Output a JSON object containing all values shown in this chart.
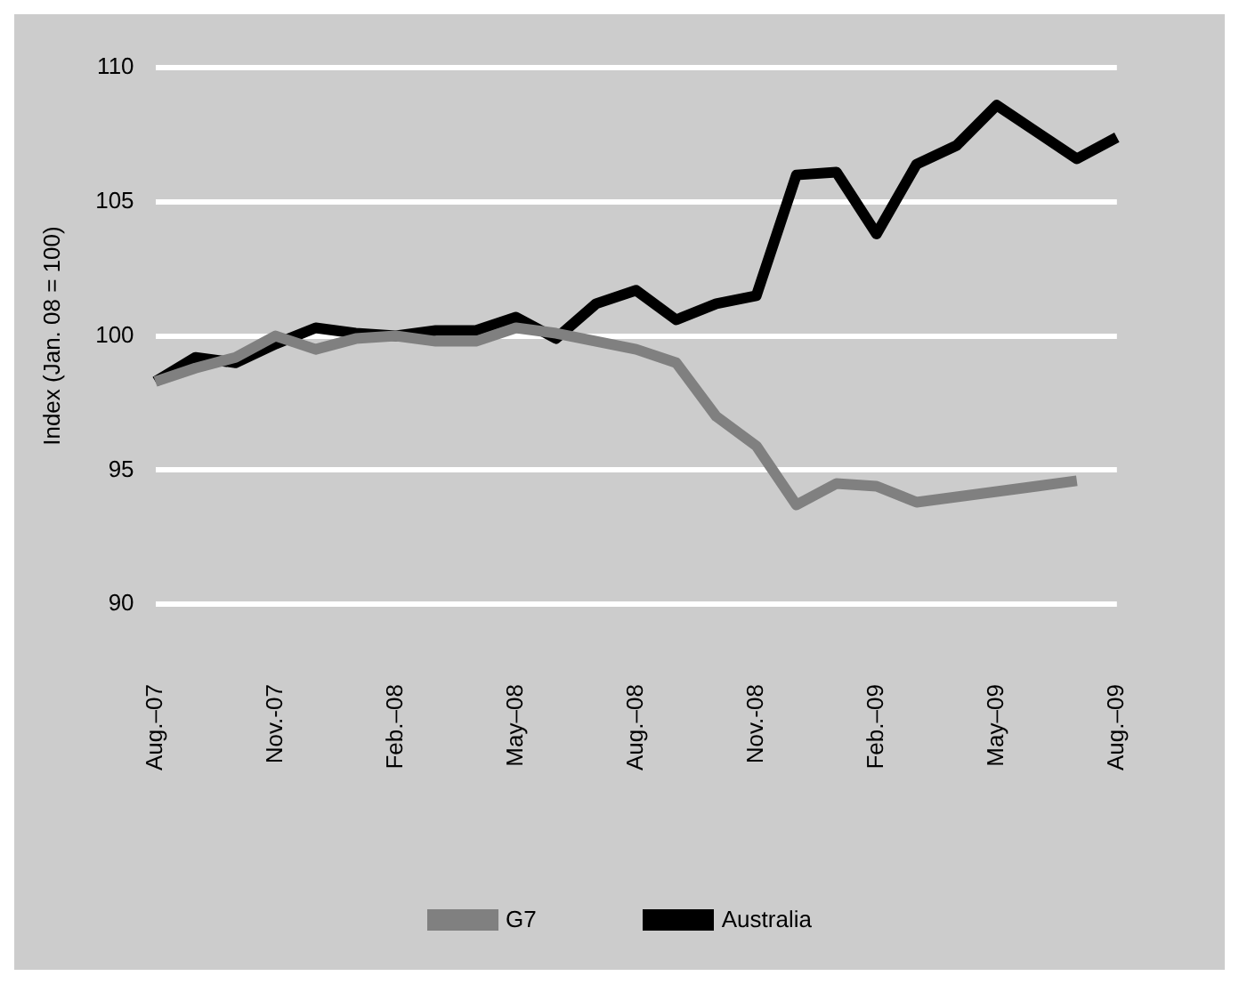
{
  "chart_data": {
    "type": "line",
    "ylabel": "Index (Jan. 08 = 100)",
    "categories": [
      "Aug.–07",
      null,
      null,
      "Nov.-07",
      null,
      null,
      "Feb.–08",
      null,
      null,
      "May–08",
      null,
      null,
      "Aug.–08",
      null,
      null,
      "Nov.-08",
      null,
      null,
      "Feb.–09",
      null,
      null,
      "May–09",
      null,
      null,
      "Aug.–09"
    ],
    "series": [
      {
        "name": "G7",
        "color": "#808080",
        "values": [
          98.3,
          98.8,
          99.2,
          100.0,
          99.5,
          99.9,
          100.0,
          99.8,
          99.8,
          100.3,
          100.1,
          99.8,
          99.5,
          99.0,
          97.0,
          95.9,
          93.7,
          94.5,
          94.4,
          93.8,
          94.0,
          94.2,
          94.4,
          94.6,
          null
        ]
      },
      {
        "name": "Australia",
        "color": "#000000",
        "values": [
          98.3,
          99.2,
          99.0,
          99.7,
          100.3,
          100.1,
          100.0,
          100.2,
          100.2,
          100.7,
          99.9,
          101.2,
          101.7,
          100.6,
          101.2,
          101.5,
          106.0,
          106.1,
          103.8,
          106.4,
          107.1,
          108.6,
          107.6,
          106.6,
          107.4
        ]
      }
    ],
    "ylim": [
      90,
      110
    ],
    "yticks": [
      90,
      95,
      100,
      105,
      110
    ],
    "grid": "y",
    "legend": "bottom",
    "marker": "none",
    "line_style": "solid"
  }
}
